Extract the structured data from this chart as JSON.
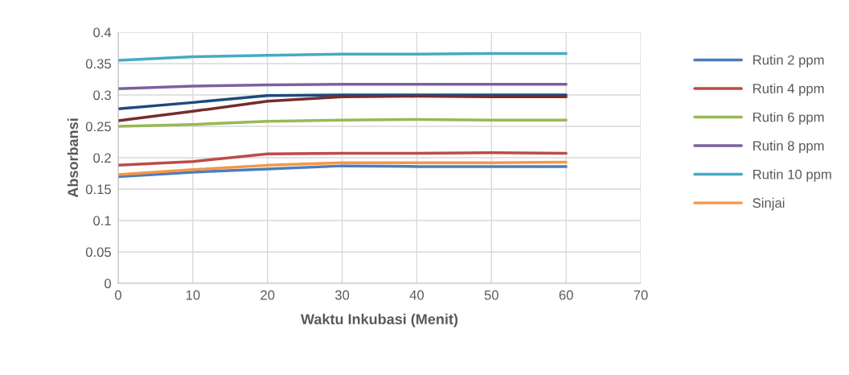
{
  "chart_data": {
    "type": "line",
    "xlabel": "Waktu Inkubasi (Menit)",
    "ylabel": "Absorbansi",
    "x": [
      0,
      10,
      20,
      30,
      40,
      50,
      60
    ],
    "series": [
      {
        "name": "Rutin 2 ppm",
        "color": "#4a7ebb",
        "values": [
          0.17,
          0.177,
          0.182,
          0.187,
          0.186,
          0.186,
          0.186
        ]
      },
      {
        "name": "Rutin 4 ppm",
        "color": "#be4b48",
        "values": [
          0.188,
          0.194,
          0.206,
          0.207,
          0.207,
          0.208,
          0.207
        ]
      },
      {
        "name": "Rutin 6 ppm",
        "color": "#98b954",
        "values": [
          0.25,
          0.253,
          0.258,
          0.26,
          0.261,
          0.26,
          0.26
        ]
      },
      {
        "name": "Rutin 8 ppm",
        "color": "#7d60a0",
        "values": [
          0.31,
          0.314,
          0.316,
          0.317,
          0.317,
          0.317,
          0.317
        ]
      },
      {
        "name": "Rutin 10 ppm",
        "color": "#46aac5",
        "values": [
          0.355,
          0.361,
          0.363,
          0.365,
          0.365,
          0.366,
          0.366
        ]
      },
      {
        "name": "Sinjai",
        "color": "#f79646",
        "values": [
          0.173,
          0.181,
          0.188,
          0.192,
          0.192,
          0.192,
          0.193
        ]
      },
      {
        "color": "#1f497d",
        "values": [
          0.278,
          0.288,
          0.299,
          0.3,
          0.3,
          0.3,
          0.3
        ]
      },
      {
        "color": "#772c2a",
        "values": [
          0.259,
          0.274,
          0.29,
          0.297,
          0.298,
          0.297,
          0.297
        ]
      }
    ],
    "xlim": [
      0,
      70
    ],
    "xticks": [
      0,
      10,
      20,
      30,
      40,
      50,
      60,
      70
    ],
    "ylim": [
      0,
      0.4
    ],
    "yticks": [
      0,
      {
        "value": 0.05,
        "label": "0.05"
      },
      {
        "value": 0.1,
        "label": "0.1"
      },
      {
        "value": 0.15,
        "label": "0.15"
      },
      {
        "value": 0.2,
        "label": "0.2"
      },
      {
        "value": 0.25,
        "label": "0.25"
      },
      {
        "value": 0.3,
        "label": "0.3"
      },
      {
        "value": 0.35,
        "label": "0.35"
      },
      {
        "value": 0.4,
        "label": "0.4"
      }
    ],
    "grid": true,
    "legend": "right",
    "marker": "none",
    "line_style": "solid"
  }
}
